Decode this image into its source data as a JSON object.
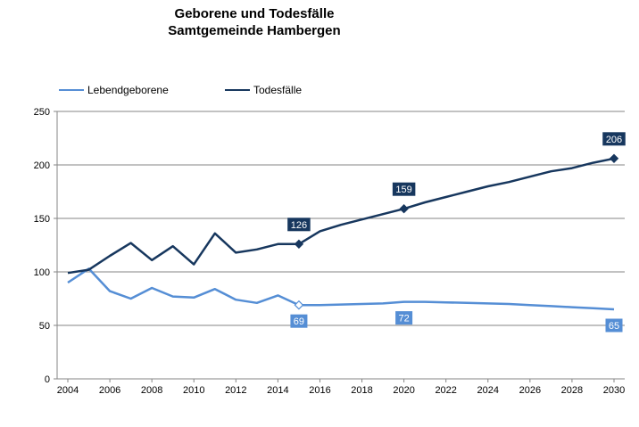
{
  "title": {
    "line1": "Geborene und Todesfälle",
    "line2": "Samtgemeinde Hambergen"
  },
  "legend": {
    "placement": "top-left",
    "items": [
      {
        "label": "Lebendgeborene",
        "color": "#558ed5"
      },
      {
        "label": "Todesfälle",
        "color": "#17375e"
      }
    ]
  },
  "chart_data": {
    "type": "line",
    "x_axis": {
      "min": 2004,
      "max": 2030,
      "ticks": [
        2004,
        2006,
        2008,
        2010,
        2012,
        2014,
        2016,
        2018,
        2020,
        2022,
        2024,
        2026,
        2028,
        2030
      ]
    },
    "y_axis": {
      "min": 0,
      "max": 250,
      "ticks": [
        0,
        50,
        100,
        150,
        200,
        250
      ]
    },
    "grid": "horizontal",
    "series": [
      {
        "name": "Lebendgeborene",
        "color": "#558ed5",
        "x": [
          2004,
          2005,
          2006,
          2007,
          2008,
          2009,
          2010,
          2011,
          2012,
          2013,
          2014,
          2015,
          2016,
          2017,
          2018,
          2019,
          2020,
          2021,
          2022,
          2023,
          2024,
          2025,
          2026,
          2027,
          2028,
          2029,
          2030
        ],
        "values": [
          90,
          103,
          82,
          75,
          85,
          77,
          76,
          84,
          74,
          71,
          78,
          69,
          69,
          69.5,
          70,
          70.5,
          72,
          72,
          71.5,
          71,
          70.5,
          70,
          69,
          68,
          67,
          66,
          65
        ],
        "labels": [
          {
            "x": 2015,
            "text": "69"
          },
          {
            "x": 2020,
            "text": "72"
          },
          {
            "x": 2030,
            "text": "65"
          }
        ],
        "markers": [
          {
            "x": 2015,
            "shape": "hollow-diamond"
          }
        ]
      },
      {
        "name": "Todesfälle",
        "color": "#17375e",
        "x": [
          2004,
          2005,
          2006,
          2007,
          2008,
          2009,
          2010,
          2011,
          2012,
          2013,
          2014,
          2015,
          2016,
          2017,
          2018,
          2019,
          2020,
          2021,
          2022,
          2023,
          2024,
          2025,
          2026,
          2027,
          2028,
          2029,
          2030
        ],
        "values": [
          99,
          102,
          115,
          127,
          111,
          124,
          107,
          136,
          118,
          121,
          126,
          126,
          138,
          144,
          149,
          154,
          159,
          165,
          170,
          175,
          180,
          184,
          189,
          194,
          197,
          202,
          206
        ],
        "labels": [
          {
            "x": 2015,
            "text": "126"
          },
          {
            "x": 2020,
            "text": "159"
          },
          {
            "x": 2030,
            "text": "206"
          }
        ],
        "markers": [
          {
            "x": 2015,
            "shape": "diamond"
          },
          {
            "x": 2020,
            "shape": "diamond"
          },
          {
            "x": 2030,
            "shape": "diamond"
          }
        ]
      }
    ]
  }
}
